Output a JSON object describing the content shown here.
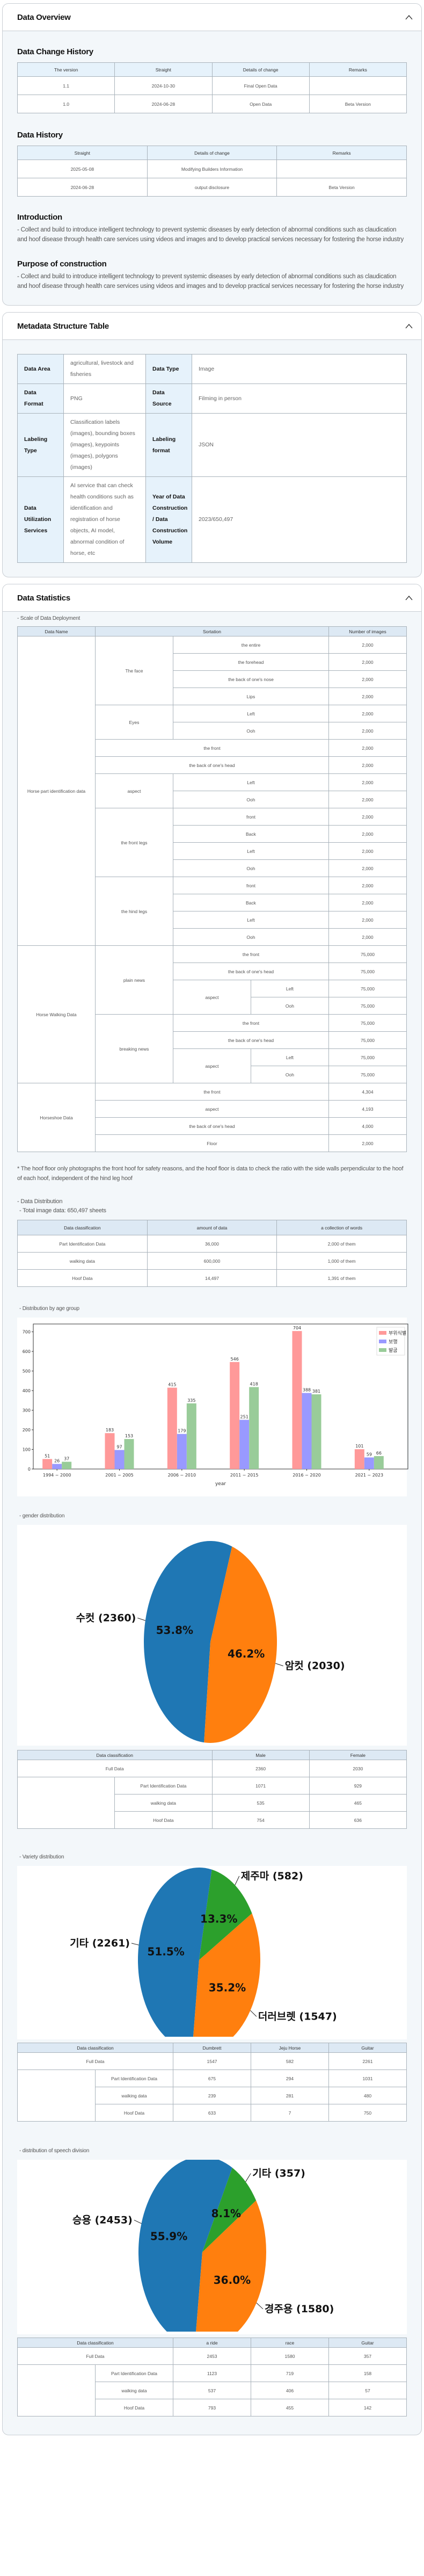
{
  "overview": {
    "title": "Data Overview",
    "change_history": {
      "title": "Data Change History",
      "headers": [
        "The version",
        "Straight",
        "Details of change",
        "Remarks"
      ],
      "rows": [
        [
          "1.1",
          "2024-10-30",
          "Final Open Data",
          ""
        ],
        [
          "1.0",
          "2024-06-28",
          "Open Data",
          "Beta Version"
        ]
      ]
    },
    "data_history": {
      "title": "Data History",
      "headers": [
        "Straight",
        "Details of change",
        "Remarks"
      ],
      "rows": [
        [
          "2025-05-08",
          "Modifying Builders Information",
          ""
        ],
        [
          "2024-06-28",
          "output disclosure",
          "Beta Version"
        ]
      ]
    },
    "introduction": {
      "title": "Introduction",
      "text": "- Collect and build to introduce intelligent technology to prevent systemic diseases by early detection of abnormal conditions such as claudication and hoof disease through health care services using videos and images and to develop practical services necessary for fostering the horse industry"
    },
    "purpose": {
      "title": "Purpose of construction",
      "text": "- Collect and build to introduce intelligent technology to prevent systemic diseases by early detection of abnormal conditions such as claudication and hoof disease through health care services using videos and images and to develop practical services necessary for fostering the horse industry"
    }
  },
  "metadata": {
    "title": "Metadata Structure Table",
    "rows": [
      {
        "k1": "Data Area",
        "v1": "agricultural, livestock and fisheries",
        "k2": "Data Type",
        "v2": "Image"
      },
      {
        "k1": "Data Format",
        "v1": "PNG",
        "k2": "Data Source",
        "v2": "Filming in person"
      },
      {
        "k1": "Labeling Type",
        "v1": "Classification labels (images), bounding boxes (images), keypoints (images), polygons (images)",
        "k2": "Labeling format",
        "v2": "JSON"
      },
      {
        "k1": "Data Utilization Services",
        "v1": "AI service that can check health conditions such as identification and registration of horse objects, AI model, abnormal condition of horse, etc",
        "k2": "Year of Data Construction / Data Construction Volume",
        "v2": "2023/650,497"
      }
    ]
  },
  "statistics": {
    "title": "Data Statistics",
    "scale_label": "- Scale of Data Deployment",
    "scale_headers": [
      "Data Name",
      "Sortation",
      "Number of images"
    ],
    "scale": {
      "part": {
        "name": "Horse part identification data",
        "face": {
          "label": "The face",
          "items": [
            [
              "the entire",
              "2,000"
            ],
            [
              "the forehead",
              "2,000"
            ],
            [
              "the back of one's nose",
              "2,000"
            ],
            [
              "Lips",
              "2,000"
            ]
          ]
        },
        "eyes": {
          "label": "Eyes",
          "items": [
            [
              "Left",
              "2,000"
            ],
            [
              "Ooh",
              "2,000"
            ]
          ]
        },
        "front": [
          "the front",
          "2,000"
        ],
        "back": [
          "the back of one's head",
          "2,000"
        ],
        "aspect": {
          "label": "aspect",
          "items": [
            [
              "Left",
              "2,000"
            ],
            [
              "Ooh",
              "2,000"
            ]
          ]
        },
        "front_legs": {
          "label": "the front legs",
          "items": [
            [
              "front",
              "2,000"
            ],
            [
              "Back",
              "2,000"
            ],
            [
              "Left",
              "2,000"
            ],
            [
              "Ooh",
              "2,000"
            ]
          ]
        },
        "hind_legs": {
          "label": "the hind legs",
          "items": [
            [
              "front",
              "2,000"
            ],
            [
              "Back",
              "2,000"
            ],
            [
              "Left",
              "2,000"
            ],
            [
              "Ooh",
              "2,000"
            ]
          ]
        }
      },
      "walking": {
        "name": "Horse Walking Data",
        "plain": {
          "label": "plain news",
          "front": [
            "the front",
            "75,000"
          ],
          "back": [
            "the back of one's head",
            "75,000"
          ],
          "aspect": "aspect",
          "aspect_items": [
            [
              "Left",
              "75,000"
            ],
            [
              "Ooh",
              "75,000"
            ]
          ]
        },
        "breaking": {
          "label": "breaking news",
          "front": [
            "the front",
            "75,000"
          ],
          "back": [
            "the back of one's head",
            "75,000"
          ],
          "aspect": "aspect",
          "aspect_items": [
            [
              "Left",
              "75,000"
            ],
            [
              "Ooh",
              "75,000"
            ]
          ]
        }
      },
      "horseshoe": {
        "name": "Horseshoe Data",
        "items": [
          [
            "the front",
            "4,304"
          ],
          [
            "aspect",
            "4,193"
          ],
          [
            "the back of one's head",
            "4,000"
          ],
          [
            "Floor",
            "2,000"
          ]
        ]
      }
    },
    "note": "* The hoof floor only photographs the front hoof for safety reasons, and the hoof floor is data to check the ratio with the side walls perpendicular to the hoof of each hoof, independent of the hind leg hoof",
    "distribution_label": "- Data Distribution",
    "total_label": "- Total image data: 650,497 sheets",
    "distribution_headers": [
      "Data classification",
      "amount of data",
      "a collection of words"
    ],
    "distribution_rows": [
      [
        "Part Identification Data",
        "36,000",
        "2,000 of them"
      ],
      [
        "walking data",
        "600,000",
        "1,000 of them"
      ],
      [
        "Hoof Data",
        "14,497",
        "1,391 of them"
      ]
    ],
    "age_label": "- Distribution by age group",
    "gender_label": "- gender distribution",
    "gender_table": {
      "headers": [
        "Data classification",
        "Male",
        "Female"
      ],
      "full": [
        "Full Data",
        "2360",
        "2030"
      ],
      "rows": [
        [
          "Part Identification Data",
          "1071",
          "929"
        ],
        [
          "walking data",
          "535",
          "465"
        ],
        [
          "Hoof Data",
          "754",
          "636"
        ]
      ]
    },
    "variety_label": "- Variety distribution",
    "variety_table": {
      "headers": [
        "Data classification",
        "Dumbrett",
        "Jeju Horse",
        "Guitar"
      ],
      "full": [
        "Full Data",
        "1547",
        "582",
        "2261"
      ],
      "rows": [
        [
          "Part Identification Data",
          "675",
          "294",
          "1031"
        ],
        [
          "walking data",
          "239",
          "281",
          "480"
        ],
        [
          "Hoof Data",
          "633",
          "7",
          "750"
        ]
      ]
    },
    "use_label": "- distribution of speech division",
    "use_table": {
      "headers": [
        "Data classification",
        "a ride",
        "race",
        "Guitar"
      ],
      "full": [
        "Full Data",
        "2453",
        "1580",
        "357"
      ],
      "rows": [
        [
          "Part Identification Data",
          "1123",
          "719",
          "158"
        ],
        [
          "walking data",
          "537",
          "406",
          "57"
        ],
        [
          "Hoof Data",
          "793",
          "455",
          "142"
        ]
      ]
    }
  },
  "chart_data": [
    {
      "type": "bar",
      "title": "Distribution by age group",
      "xlabel": "year",
      "ylabel": "",
      "categories": [
        "1994 ~ 2000",
        "2001 ~ 2005",
        "2006 ~ 2010",
        "2011 ~ 2015",
        "2016 ~ 2020",
        "2021 ~ 2023"
      ],
      "series": [
        {
          "name": "부위식별",
          "color": "#ff9999",
          "values": [
            51,
            183,
            415,
            546,
            704,
            101
          ]
        },
        {
          "name": "보행",
          "color": "#9999ff",
          "values": [
            26,
            97,
            179,
            251,
            388,
            59
          ]
        },
        {
          "name": "발굽",
          "color": "#99cc99",
          "values": [
            37,
            153,
            335,
            418,
            381,
            66
          ]
        }
      ],
      "ylim": [
        0,
        740
      ],
      "yticks": [
        0,
        100,
        200,
        300,
        400,
        500,
        600,
        700
      ],
      "legend": "top-right",
      "grid": false
    },
    {
      "type": "pie",
      "title": "gender distribution",
      "slices": [
        {
          "label": "수컷 (2360)",
          "value": 2360,
          "pct": "53.8%",
          "color": "#1f77b4"
        },
        {
          "label": "암컷 (2030)",
          "value": 2030,
          "pct": "46.2%",
          "color": "#ff7f0e"
        }
      ]
    },
    {
      "type": "pie",
      "title": "Variety distribution",
      "slices": [
        {
          "label": "기타 (2261)",
          "value": 2261,
          "pct": "51.5%",
          "color": "#1f77b4"
        },
        {
          "label": "더러브렛 (1547)",
          "value": 1547,
          "pct": "35.2%",
          "color": "#ff7f0e"
        },
        {
          "label": "제주마 (582)",
          "value": 582,
          "pct": "13.3%",
          "color": "#2ca02c"
        }
      ]
    },
    {
      "type": "pie",
      "title": "distribution of speech division",
      "slices": [
        {
          "label": "승용 (2453)",
          "value": 2453,
          "pct": "55.9%",
          "color": "#1f77b4"
        },
        {
          "label": "경주용 (1580)",
          "value": 1580,
          "pct": "36.0%",
          "color": "#ff7f0e"
        },
        {
          "label": "기타 (357)",
          "value": 357,
          "pct": "8.1%",
          "color": "#2ca02c"
        }
      ]
    }
  ]
}
